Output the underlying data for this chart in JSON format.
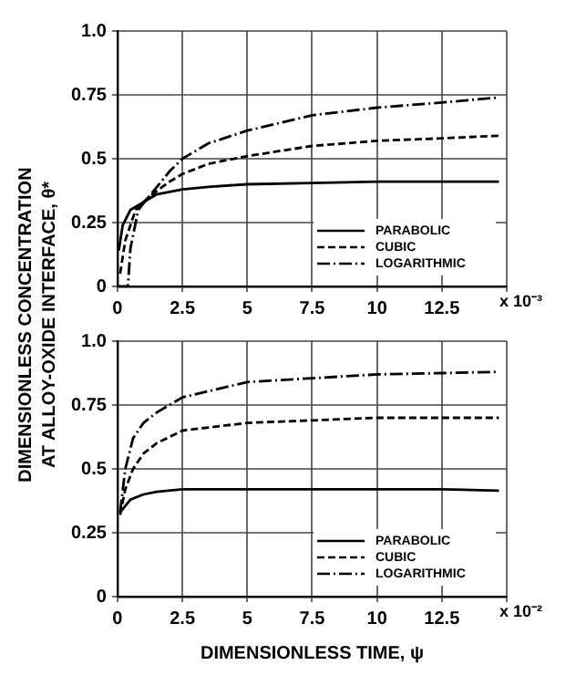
{
  "chart_data": [
    {
      "type": "line",
      "ylabel": "DIMENSIONLESS CONCENTRATION\nAT ALLOY-OXIDE INTERFACE, θ*",
      "annotations": [
        "x 10⁻³"
      ],
      "xlim": [
        0,
        15
      ],
      "xticks": [
        0,
        2.5,
        5,
        7.5,
        10,
        12.5,
        {
          "value": 15,
          "label": null
        }
      ],
      "ylim": [
        0,
        1
      ],
      "yticks": [
        0,
        0.25,
        0.5,
        0.75,
        {
          "value": 1,
          "label": "1.0"
        }
      ],
      "grid": true,
      "legend": "bottom right",
      "marker": "none",
      "series": [
        {
          "name": "PARABOLIC",
          "color": "#000000",
          "line_style": "solid",
          "x": [
            0.05,
            0.2,
            0.5,
            1,
            1.5,
            2.5,
            3.5,
            5,
            7.5,
            10,
            12.5,
            14.7
          ],
          "values": [
            0.14,
            0.24,
            0.3,
            0.33,
            0.36,
            0.38,
            0.39,
            0.4,
            0.405,
            0.41,
            0.41,
            0.41
          ]
        },
        {
          "name": "CUBIC",
          "color": "#000000",
          "line_style": "dashed",
          "x": [
            0.1,
            0.3,
            0.7,
            1.2,
            2,
            2.5,
            3.5,
            5,
            7.5,
            10,
            12.5,
            14.7
          ],
          "values": [
            0.05,
            0.18,
            0.3,
            0.35,
            0.41,
            0.44,
            0.48,
            0.51,
            0.55,
            0.57,
            0.58,
            0.59
          ]
        },
        {
          "name": "LOGARITHMIC",
          "color": "#000000",
          "line_style": "dashdot",
          "x": [
            0,
            0.4,
            0.5,
            0.8,
            1.2,
            2,
            2.5,
            3.5,
            5,
            7.5,
            10,
            12.5,
            14.7
          ],
          "values": [
            0,
            0,
            0.15,
            0.3,
            0.35,
            0.45,
            0.5,
            0.56,
            0.61,
            0.67,
            0.7,
            0.72,
            0.74
          ]
        }
      ]
    },
    {
      "type": "line",
      "xlabel": "DIMENSIONLESS TIME, ψ",
      "annotations": [
        "x 10⁻²"
      ],
      "xlim": [
        0,
        15
      ],
      "xticks": [
        0,
        2.5,
        5,
        7.5,
        10,
        12.5,
        {
          "value": 15,
          "label": null
        }
      ],
      "ylim": [
        0,
        1
      ],
      "yticks": [
        0,
        0.25,
        0.5,
        0.75,
        {
          "value": 1,
          "label": "1.0"
        }
      ],
      "grid": true,
      "legend": "bottom right",
      "marker": "none",
      "series": [
        {
          "name": "PARABOLIC",
          "color": "#000000",
          "line_style": "solid",
          "x": [
            0.1,
            0.5,
            1,
            1.5,
            2.5,
            5,
            7.5,
            10,
            12.5,
            14.7
          ],
          "values": [
            0.33,
            0.38,
            0.4,
            0.41,
            0.42,
            0.42,
            0.42,
            0.42,
            0.42,
            0.415
          ]
        },
        {
          "name": "CUBIC",
          "color": "#000000",
          "line_style": "dashed",
          "x": [
            0.1,
            0.3,
            0.6,
            1,
            1.5,
            2.5,
            5,
            7.5,
            10,
            12.5,
            14.7
          ],
          "values": [
            0.32,
            0.42,
            0.5,
            0.56,
            0.6,
            0.65,
            0.68,
            0.69,
            0.7,
            0.7,
            0.7
          ]
        },
        {
          "name": "LOGARITHMIC",
          "color": "#000000",
          "line_style": "dashdot",
          "x": [
            0.1,
            0.3,
            0.6,
            1,
            1.5,
            2.5,
            5,
            7.5,
            10,
            12.5,
            14.7
          ],
          "values": [
            0.33,
            0.5,
            0.62,
            0.68,
            0.72,
            0.78,
            0.84,
            0.855,
            0.87,
            0.875,
            0.88
          ]
        }
      ]
    }
  ]
}
